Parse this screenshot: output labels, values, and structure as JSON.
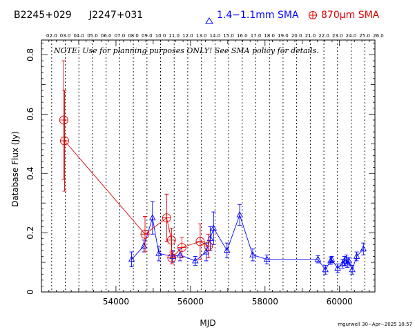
{
  "header": {
    "source_name": "B2245+029",
    "alt_name": "J2247+031",
    "legend_blue_label": "1.4−1.1mm SMA",
    "legend_red_label": "870μm SMA"
  },
  "note": "NOTE: Use for planning purposes ONLY! See SMA policy for details.",
  "credit": "mgurwell 30−Apr−2025 10:57",
  "colors": {
    "blue": "#0000ff",
    "red": "#dd0000",
    "axis": "#000000"
  },
  "chart_data": {
    "type": "scatter",
    "xlabel": "MJD",
    "ylabel": "Database Flux (Jy)",
    "xlim": [
      52000,
      60950
    ],
    "ylim": [
      0,
      0.85
    ],
    "x_ticks": [
      54000,
      56000,
      58000,
      60000
    ],
    "y_ticks": [
      0,
      0.2,
      0.4,
      0.6,
      0.8
    ],
    "year_ticks": [
      "02.0",
      "03.0",
      "04.0",
      "05.0",
      "06.0",
      "07.0",
      "08.0",
      "09.0",
      "10.0",
      "11.0",
      "12.0",
      "13.0",
      "14.0",
      "15.0",
      "16.0",
      "17.0",
      "18.0",
      "19.0",
      "20.0",
      "21.0",
      "22.0",
      "23.0",
      "24.0",
      "25.0",
      "26.0"
    ],
    "year_tick_mjd": [
      52275,
      52640,
      53005,
      53371,
      53736,
      54101,
      54466,
      54832,
      55197,
      55562,
      55927,
      56293,
      56658,
      57023,
      57388,
      57754,
      58119,
      58484,
      58849,
      59215,
      59580,
      59945,
      60310,
      60676,
      61041
    ],
    "legend_position": "top-right",
    "series": [
      {
        "name": "1.4−1.1mm SMA",
        "color": "#0000ff",
        "marker": "triangle",
        "x": [
          54420,
          54750,
          54980,
          55150,
          55520,
          55720,
          56130,
          56420,
          56530,
          56620,
          56980,
          57320,
          57670,
          58050,
          59420,
          59620,
          59760,
          59790,
          59950,
          60080,
          60130,
          60180,
          60210,
          60250,
          60340,
          60460,
          60640
        ],
        "y": [
          0.11,
          0.155,
          0.25,
          0.13,
          0.12,
          0.125,
          0.105,
          0.135,
          0.18,
          0.215,
          0.14,
          0.26,
          0.125,
          0.11,
          0.11,
          0.075,
          0.105,
          0.11,
          0.08,
          0.095,
          0.105,
          0.11,
          0.095,
          0.105,
          0.075,
          0.12,
          0.145
        ],
        "err": [
          0.025,
          0.02,
          0.055,
          0.025,
          0.02,
          0.02,
          0.015,
          0.03,
          0.04,
          0.055,
          0.025,
          0.035,
          0.02,
          0.015,
          0.012,
          0.015,
          0.012,
          0.01,
          0.015,
          0.015,
          0.015,
          0.015,
          0.012,
          0.012,
          0.015,
          0.015,
          0.02
        ]
      },
      {
        "name": "870μm SMA",
        "color": "#dd0000",
        "marker": "circle-plus",
        "x": [
          52600,
          52620,
          54780,
          55360,
          55490,
          55500,
          55770,
          56260,
          56480
        ],
        "y": [
          0.58,
          0.51,
          0.195,
          0.25,
          0.175,
          0.115,
          0.15,
          0.17,
          0.155
        ],
        "err": [
          0.2,
          0.17,
          0.06,
          0.08,
          0.04,
          0.02,
          0.035,
          0.06,
          0.04
        ]
      }
    ]
  }
}
